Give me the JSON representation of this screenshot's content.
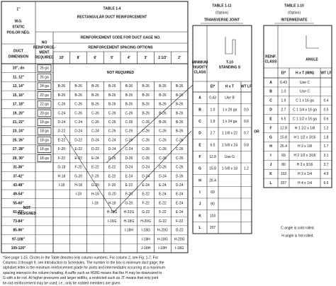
{
  "table_1_4": {
    "static": [
      "1\"",
      "W.G.",
      "STATIC",
      "POS.OR NEG."
    ],
    "title": "TABLE 1-4",
    "subtitle": "RECTANGULAR DUCT REINFORCEMENT",
    "dimension_header": [
      "DUCT",
      "DIMENSION"
    ],
    "no_reinf_header": [
      "NO",
      "REINFORCE-",
      "MENT",
      "REQUIRED"
    ],
    "code_header": "REINFORCEMENT CODE FOR DUCT GAGE NO.",
    "spacing_header": "REINFORCEMENT SPACING OPTIONS",
    "spacings": [
      "10'",
      "8'",
      "6'",
      "5'",
      "4'",
      "3'",
      "2 1/2'",
      "2'"
    ],
    "not_required": "NOT REQUIRED",
    "not_designed": [
      "NOT",
      "DESIGNED"
    ],
    "rows": [
      {
        "dim": "10\", dn",
        "gauge": "26 ga",
        "codes": [
          null,
          null,
          null,
          null,
          null,
          null,
          null,
          null
        ]
      },
      {
        "dim": "11, 12\"",
        "gauge": "26 ga",
        "codes": [
          null,
          null,
          null,
          null,
          null,
          null,
          null,
          null
        ]
      },
      {
        "dim": "13, 14\"",
        "gauge": "24 ga",
        "codes": [
          "B-26",
          "B-26",
          "B-26",
          "B-26",
          "B-26",
          "B-26",
          "B-26",
          "B-26"
        ]
      },
      {
        "dim": "15, 16\"",
        "gauge": "22 ga",
        "codes": [
          "B-26",
          "B-26",
          "B-26",
          "B-26",
          "B-26",
          "B-26",
          "B-26",
          "B-26"
        ]
      },
      {
        "dim": "17, 18\"",
        "gauge": "22 ga",
        "codes": [
          "C-26",
          "C-26",
          "B-26",
          "B-26",
          "B-26",
          "B-26",
          "B-26",
          "B-26"
        ]
      },
      {
        "dim": "19, 20\"",
        "gauge": "20 ga",
        "codes": [
          "C-24",
          "C-26",
          "C-26",
          "C-26",
          "C-26",
          "B-26",
          "B-26",
          "B-26"
        ]
      },
      {
        "dim": "21, 22\"",
        "gauge": "18 ga",
        "codes": [
          "D-24",
          "C-24",
          "C-26",
          "C-26",
          "C-26",
          "C-26",
          "B-26",
          "B-26"
        ]
      },
      {
        "dim": "23, 24\"",
        "gauge": "18 ga",
        "codes": [
          "D-22",
          "D-24",
          "C-24",
          "C-26",
          "C-26",
          "C-26",
          "C-26",
          "B-26"
        ]
      },
      {
        "dim": "25, 26\"",
        "gauge": "18 ga",
        "codes": [
          "E-22",
          "D-22",
          "D-24",
          "C-24",
          "C-26",
          "C-26",
          "C-26",
          "C-26"
        ]
      },
      {
        "dim": "27, 28\"",
        "gauge": "18 ga",
        "codes": [
          "F-20",
          "E-22",
          "D-22",
          "D-24",
          "C-24",
          "C-26",
          "C-26",
          "C-26"
        ]
      },
      {
        "dim": "29, 30\"",
        "gauge": "18 ga",
        "codes": [
          "F-22",
          "E-22",
          "E-24",
          "D-26",
          "D-26",
          "C-26",
          "C-26",
          "C-26"
        ]
      },
      {
        "dim": "31-36\"",
        "gauge": null,
        "codes": [
          "G-18",
          "F-20",
          "E-22",
          "E-22",
          "D-24",
          "D-24",
          "D-26",
          "C-26"
        ]
      },
      {
        "dim": "37-42\"",
        "gauge": null,
        "codes": [
          "H-18",
          "G-20",
          "F-20",
          "E-22",
          "E-24",
          "D-24",
          "D-24",
          "D-26"
        ]
      },
      {
        "dim": "43-48\"",
        "gauge": null,
        "codes": [
          "I-18",
          "H-18",
          "G-20",
          "F-20",
          "E-22",
          "E-24",
          "E-24",
          "D-24"
        ]
      },
      {
        "dim": "49-54\"",
        "gauge": null,
        "codes": [
          null,
          "I-18",
          "H-18",
          "G-20",
          "F-20",
          "E-22",
          "E-24",
          "E-24"
        ]
      },
      {
        "dim": "55-60\"",
        "gauge": null,
        "codes": [
          null,
          null,
          "I-18",
          "H-18",
          "G-20",
          "F-22",
          "E-22",
          "E-24"
        ]
      },
      {
        "dim": "61-72\"",
        "gauge": null,
        "codes": [
          null,
          null,
          null,
          "H-18G",
          "H-22G",
          "G-22",
          "F-22",
          "E-24"
        ]
      },
      {
        "dim": "73-84\"",
        "gauge": null,
        "codes": [
          null,
          null,
          null,
          "I-16G",
          "H-18G",
          "H-20G",
          "G-22",
          "F-22"
        ]
      },
      {
        "dim": "85-96\"",
        "gauge": null,
        "codes": [
          null,
          null,
          null,
          null,
          "I-18H",
          "I-18G",
          "H-20G",
          "G-22"
        ]
      },
      {
        "dim": "97-108\"",
        "gauge": null,
        "codes": [
          null,
          null,
          null,
          null,
          null,
          "I-18H",
          "H-18G",
          "H-20G"
        ]
      },
      {
        "dim": "109-120\"",
        "gauge": null,
        "codes": [
          null,
          null,
          null,
          null,
          null,
          "J-18H",
          "I-18H",
          "I-18G"
        ]
      }
    ]
  },
  "footnote": [
    "*See page 1-15. Circles in the Table denotes only column numbers. For column 2, see Fig. 1-7. For",
    "Columns 3 through 9, see Introduction to Schedules. The number in the box is minimum duct gage; the",
    "alphabet letter is the minimum reinforcement grade for joints and intermediates occurring at a maximum",
    "spacing interval in the column heading. A suffix such as H18G means that the H may be downsized to",
    "G with a tie rod. At higher pressures and larger widths, a restricted such as JT means that only joint",
    "tie-rod reinforcement may be used; i.e., only tie rodded members are given."
  ],
  "table_1_11": {
    "title": "TABLE 1-11",
    "option": "(Option)",
    "subtitle": "TRANSVERSE JOINT",
    "class_header": [
      "MINIMUM",
      "RIGIDITY",
      "CLASS"
    ],
    "joint_header": [
      "T-10",
      "STANDING S"
    ],
    "sub_headers": [
      "EI*",
      "H x T",
      "WT LF"
    ],
    "rows": [
      {
        "class": "A",
        "ei": "0.43",
        "size": "Use B",
        "wt": null
      },
      {
        "class": "B",
        "ei": "1.0",
        "size": "1 x 26 ga",
        "wt": "0.5"
      },
      {
        "class": "C",
        "ei": "1.9",
        "size": "1 x 24 ga",
        "wt": "0.6"
      },
      {
        "class": "D",
        "ei": "2.7",
        "size": "1 1/8 x 22",
        "wt": "0.7"
      },
      {
        "class": "E",
        "ei": "6.5",
        "size": "1 5/8 x 24",
        "wt": "0.8"
      },
      {
        "class": "F",
        "ei": "12.8",
        "size": "Use G",
        "wt": null
      },
      {
        "class": "G",
        "ei": "15.8",
        "size": "1 5/8 x 18",
        "wt": "1.2"
      },
      {
        "class": "H",
        "ei": "26.4",
        "size": null,
        "wt": null
      },
      {
        "class": "I",
        "ei": "69",
        "size": null,
        "wt": null
      },
      {
        "class": "J",
        "ei": "80",
        "size": null,
        "wt": null
      },
      {
        "class": "K",
        "ei": "103",
        "size": null,
        "wt": null
      },
      {
        "class": "L",
        "ei": "207",
        "size": null,
        "wt": null
      }
    ]
  },
  "or": "OR",
  "table_1_10": {
    "title": "TABLE 1-10",
    "option": "(Option)",
    "subtitle": "INTERMEDIATE",
    "class_header": [
      "REINF.",
      "CLASS"
    ],
    "angle_header": "ANGLE",
    "sub_headers": [
      "EI*",
      "H x T (MIN)",
      "WT LF"
    ],
    "rows": [
      {
        "class": "A",
        "ei": "0.43",
        "size": "Use C",
        "wt": null
      },
      {
        "class": "B",
        "ei": "1.0",
        "size": "Use C",
        "wt": null
      },
      {
        "class": "C",
        "ei": "1.9",
        "size": "C 1 x 16 ga",
        "wt": "0.4"
      },
      {
        "class": "D",
        "ei": "2.7",
        "size": "C 1 1/4 x 16 ga",
        "wt": "0.5"
      },
      {
        "class": "E",
        "ei": "6.5",
        "size": "C 1 1/2 x 16 ga",
        "wt": "0.6"
      },
      {
        "class": "F",
        "ei": "12.8",
        "size": "H 1 1/2 x 1/8",
        "wt": "1.2"
      },
      {
        "class": "G",
        "ei": "15.8",
        "size": "H 1 1/2 x 3/16",
        "wt": "1.8"
      },
      {
        "class": "H",
        "ei": "26.4",
        "size": "H 2 x 1/8",
        "wt": "1.7"
      },
      {
        "class": "I",
        "ei": "69",
        "size": "H 2 1/2 x 3/16",
        "wt": "3.1"
      },
      {
        "class": "J",
        "ei": "80",
        "size": "H 3 x 3/16",
        "wt": "3.7"
      },
      {
        "class": "K",
        "ei": "103",
        "size": "H 3 x 1/4",
        "wt": "4.9"
      },
      {
        "class": "L",
        "ei": "207",
        "size": "H 4 x 1/4",
        "wt": "6.6"
      }
    ]
  },
  "note": [
    "C angle is cold rolled.",
    "H angle is hot rolled."
  ]
}
